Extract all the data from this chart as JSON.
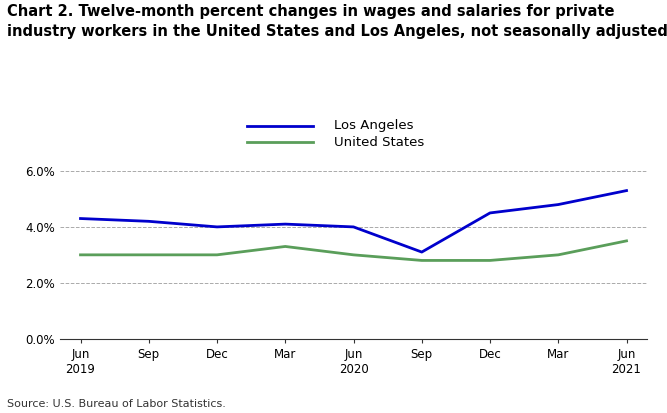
{
  "title": "Chart 2. Twelve-month percent changes in wages and salaries for private\nindustry workers in the United States and Los Angeles, not seasonally adjusted",
  "x_labels": [
    "Jun\n2019",
    "Sep",
    "Dec",
    "Mar",
    "Jun\n2020",
    "Sep",
    "Dec",
    "Mar",
    "Jun\n2021"
  ],
  "x_positions": [
    0,
    1,
    2,
    3,
    4,
    5,
    6,
    7,
    8
  ],
  "la_values": [
    0.043,
    0.042,
    0.04,
    0.041,
    0.04,
    0.031,
    0.045,
    0.048,
    0.053
  ],
  "us_values": [
    0.03,
    0.03,
    0.03,
    0.033,
    0.03,
    0.028,
    0.028,
    0.03,
    0.035
  ],
  "la_color": "#0000CC",
  "us_color": "#5a9e5a",
  "la_label": "Los Angeles",
  "us_label": "United States",
  "ylim": [
    0.0,
    0.068
  ],
  "yticks": [
    0.0,
    0.02,
    0.04,
    0.06
  ],
  "ytick_labels": [
    "0.0%",
    "2.0%",
    "4.0%",
    "6.0%"
  ],
  "source": "Source: U.S. Bureau of Labor Statistics.",
  "background_color": "#ffffff",
  "grid_color": "#aaaaaa",
  "line_width": 2.0,
  "title_fontsize": 10.5,
  "legend_fontsize": 9.5,
  "tick_fontsize": 8.5,
  "source_fontsize": 8.0
}
